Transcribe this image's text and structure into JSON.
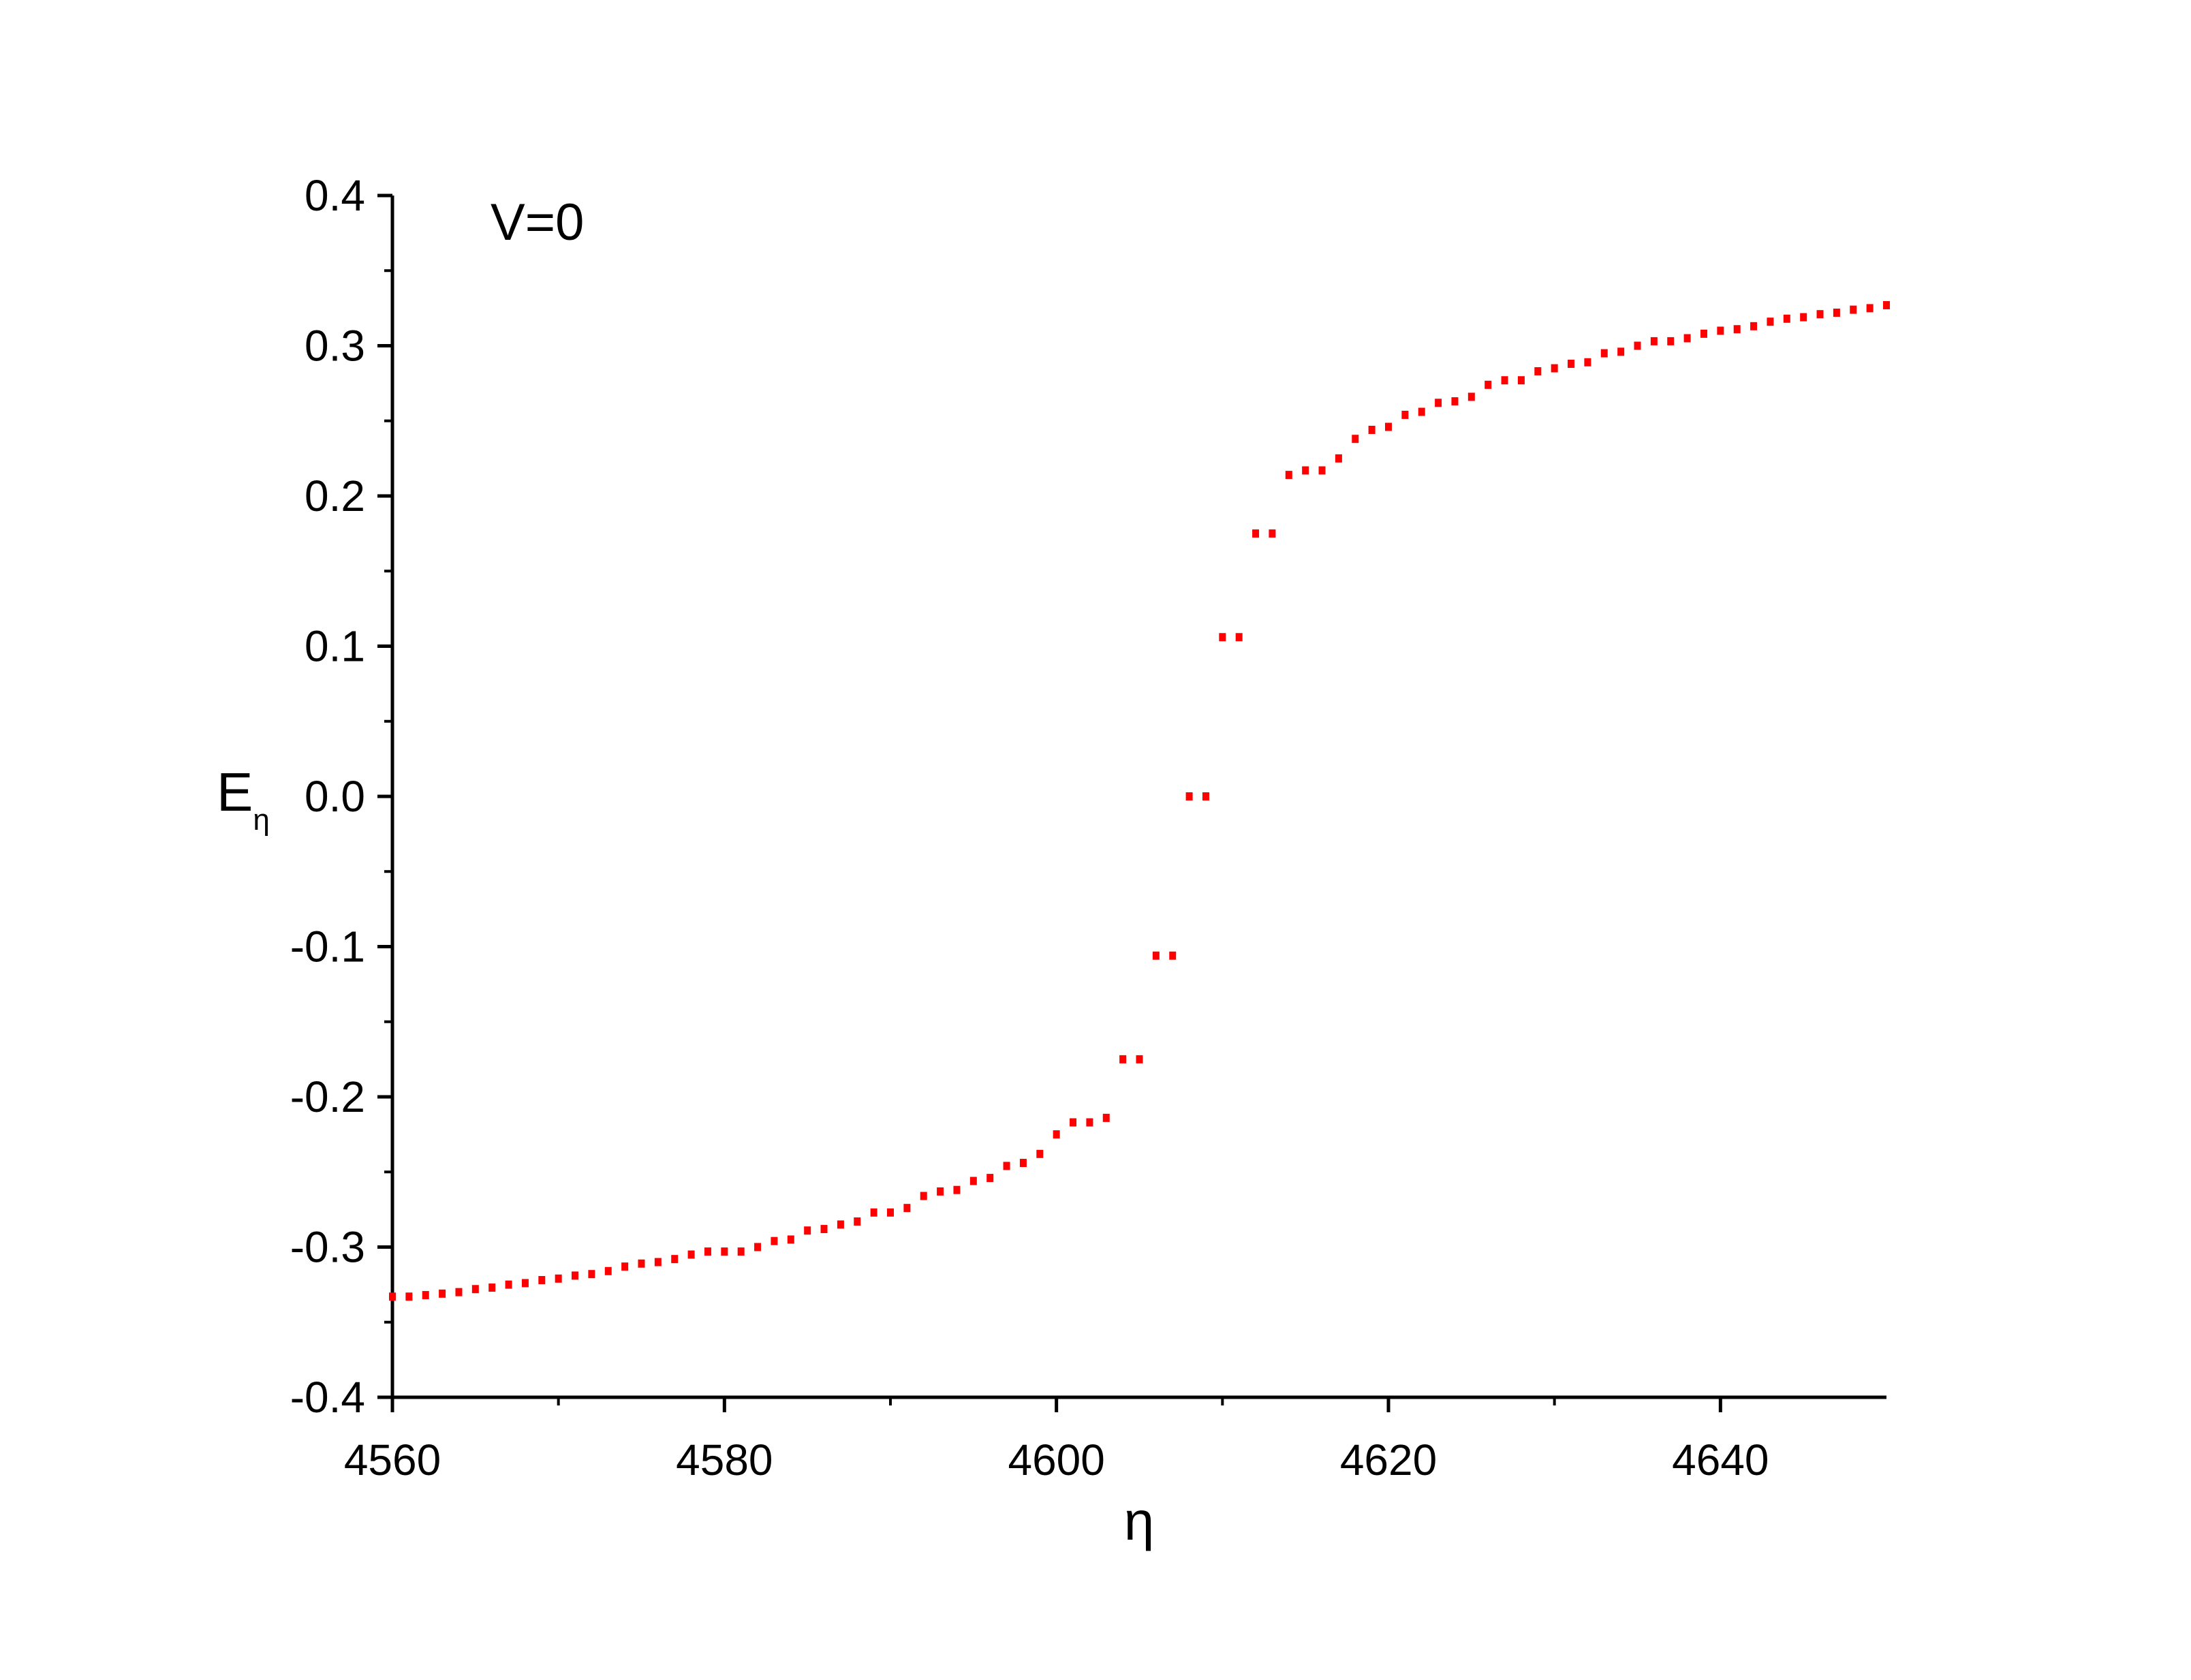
{
  "chart_data": {
    "type": "scatter",
    "annotation": "V=0",
    "xlabel": "η",
    "ylabel": {
      "main": "E",
      "sub": "η"
    },
    "color": "#ff0000",
    "xlim": [
      4560,
      4650
    ],
    "ylim": [
      -0.4,
      0.4
    ],
    "xticks": [
      4560,
      4580,
      4600,
      4620,
      4640
    ],
    "yticks": [
      -0.4,
      -0.3,
      -0.2,
      -0.1,
      {
        "value": 0,
        "label": "0.0"
      },
      0.1,
      0.2,
      0.3,
      0.4
    ],
    "x": [
      4560,
      4561,
      4562,
      4563,
      4564,
      4565,
      4566,
      4567,
      4568,
      4569,
      4570,
      4571,
      4572,
      4573,
      4574,
      4575,
      4576,
      4577,
      4578,
      4579,
      4580,
      4581,
      4582,
      4583,
      4584,
      4585,
      4586,
      4587,
      4588,
      4589,
      4590,
      4591,
      4592,
      4593,
      4594,
      4595,
      4596,
      4597,
      4598,
      4599,
      4600,
      4601,
      4602,
      4603,
      4604,
      4605,
      4606,
      4607,
      4608,
      4609,
      4610,
      4611,
      4612,
      4613,
      4614,
      4615,
      4616,
      4617,
      4618,
      4619,
      4620,
      4621,
      4622,
      4623,
      4624,
      4625,
      4626,
      4627,
      4628,
      4629,
      4630,
      4631,
      4632,
      4633,
      4634,
      4635,
      4636,
      4637,
      4638,
      4639,
      4640,
      4641,
      4642,
      4643,
      4644,
      4645,
      4646,
      4647,
      4648,
      4649,
      4650
    ],
    "values": [
      -0.333,
      -0.333,
      -0.332,
      -0.331,
      -0.33,
      -0.328,
      -0.327,
      -0.325,
      -0.324,
      -0.322,
      -0.321,
      -0.319,
      -0.318,
      -0.316,
      -0.313,
      -0.311,
      -0.31,
      -0.308,
      -0.305,
      -0.303,
      -0.303,
      -0.303,
      -0.3,
      -0.296,
      -0.295,
      -0.289,
      -0.288,
      -0.285,
      -0.283,
      -0.277,
      -0.277,
      -0.274,
      -0.266,
      -0.263,
      -0.262,
      -0.256,
      -0.254,
      -0.246,
      -0.244,
      -0.238,
      -0.225,
      -0.217,
      -0.217,
      -0.214,
      -0.175,
      -0.175,
      -0.106,
      -0.106,
      0,
      0,
      0.106,
      0.106,
      0.175,
      0.175,
      0.214,
      0.217,
      0.217,
      0.225,
      0.238,
      0.244,
      0.246,
      0.254,
      0.256,
      0.262,
      0.263,
      0.266,
      0.274,
      0.277,
      0.277,
      0.283,
      0.285,
      0.288,
      0.289,
      0.295,
      0.296,
      0.3,
      0.303,
      0.303,
      0.305,
      0.308,
      0.31,
      0.311,
      0.313,
      0.316,
      0.318,
      0.319,
      0.321,
      0.322,
      0.324,
      0.325,
      0.327
    ]
  }
}
